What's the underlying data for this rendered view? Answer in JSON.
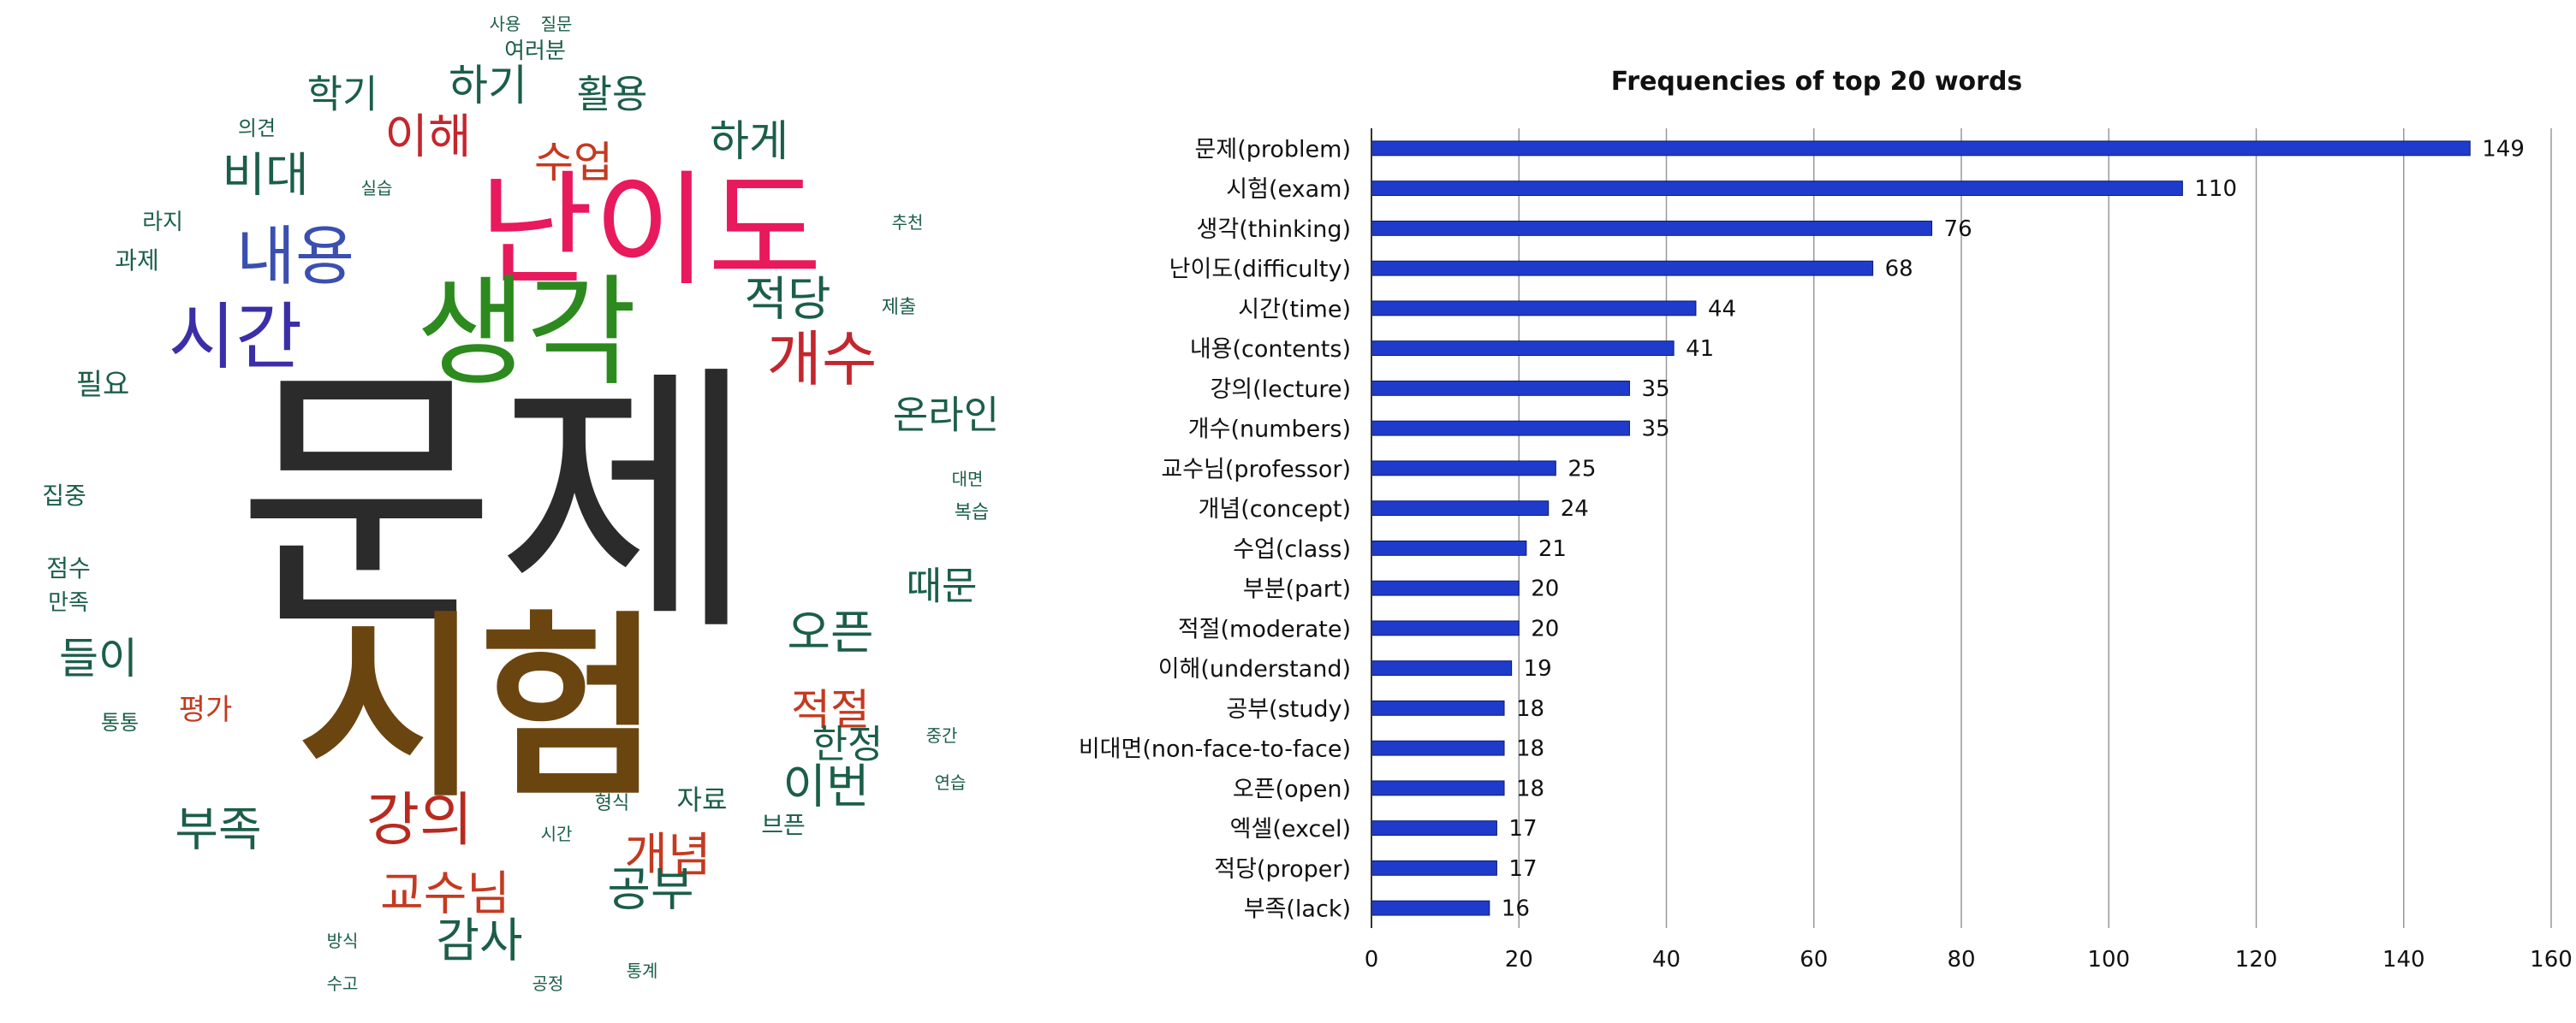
{
  "wordcloud": {
    "words": [
      {
        "text": "문제",
        "color": "#2b2b2b",
        "size": 330,
        "pos": [
          580,
          590
        ]
      },
      {
        "text": "시험",
        "color": "#6b4510",
        "size": 230,
        "pos": [
          560,
          830
        ],
        "weight": "bold"
      },
      {
        "text": "난이도",
        "color": "#e8195c",
        "size": 145,
        "pos": [
          760,
          270
        ]
      },
      {
        "text": "생각",
        "color": "#2d8a1e",
        "size": 140,
        "pos": [
          615,
          390
        ]
      },
      {
        "text": "시간",
        "color": "#3b2ea8",
        "size": 85,
        "pos": [
          275,
          395
        ]
      },
      {
        "text": "내용",
        "color": "#3b4fb0",
        "size": 75,
        "pos": [
          345,
          300
        ]
      },
      {
        "text": "개수",
        "color": "#c4262e",
        "size": 70,
        "pos": [
          960,
          420
        ]
      },
      {
        "text": "강의",
        "color": "#b82a20",
        "size": 68,
        "pos": [
          490,
          960
        ]
      },
      {
        "text": "비대",
        "color": "#1b5e4a",
        "size": 55,
        "pos": [
          310,
          205
        ]
      },
      {
        "text": "이해",
        "color": "#c4262e",
        "size": 55,
        "pos": [
          500,
          160
        ]
      },
      {
        "text": "적당",
        "color": "#1b5e4a",
        "size": 55,
        "pos": [
          920,
          350
        ]
      },
      {
        "text": "수업",
        "color": "#c43a20",
        "size": 50,
        "pos": [
          670,
          190
        ]
      },
      {
        "text": "하게",
        "color": "#1b5e4a",
        "size": 50,
        "pos": [
          875,
          165
        ]
      },
      {
        "text": "하기",
        "color": "#1b5e4a",
        "size": 50,
        "pos": [
          570,
          100
        ]
      },
      {
        "text": "학기",
        "color": "#1b5e4a",
        "size": 45,
        "pos": [
          400,
          110
        ]
      },
      {
        "text": "활용",
        "color": "#1b5e4a",
        "size": 45,
        "pos": [
          715,
          110
        ]
      },
      {
        "text": "온라인",
        "color": "#1b5e4a",
        "size": 45,
        "pos": [
          1105,
          485
        ]
      },
      {
        "text": "때문",
        "color": "#1b5e4a",
        "size": 45,
        "pos": [
          1100,
          685
        ]
      },
      {
        "text": "오픈",
        "color": "#1b5e4a",
        "size": 55,
        "pos": [
          970,
          740
        ]
      },
      {
        "text": "적절",
        "color": "#c43a20",
        "size": 50,
        "pos": [
          970,
          830
        ]
      },
      {
        "text": "한정",
        "color": "#1b5e4a",
        "size": 45,
        "pos": [
          990,
          870
        ]
      },
      {
        "text": "이번",
        "color": "#1b5e4a",
        "size": 55,
        "pos": [
          965,
          920
        ]
      },
      {
        "text": "들이",
        "color": "#1b5e4a",
        "size": 50,
        "pos": [
          115,
          770
        ]
      },
      {
        "text": "부족",
        "color": "#1b5e4a",
        "size": 55,
        "pos": [
          255,
          970
        ]
      },
      {
        "text": "개념",
        "color": "#c43a20",
        "size": 55,
        "pos": [
          780,
          1000
        ]
      },
      {
        "text": "공부",
        "color": "#1b5e4a",
        "size": 55,
        "pos": [
          760,
          1040
        ]
      },
      {
        "text": "교수님",
        "color": "#c43a20",
        "size": 55,
        "pos": [
          520,
          1045
        ]
      },
      {
        "text": "감사",
        "color": "#1b5e4a",
        "size": 55,
        "pos": [
          560,
          1100
        ]
      },
      {
        "text": "자료",
        "color": "#1b5e4a",
        "size": 32,
        "pos": [
          820,
          935
        ]
      },
      {
        "text": "브픈",
        "color": "#1b5e4a",
        "size": 28,
        "pos": [
          915,
          965
        ]
      },
      {
        "text": "평가",
        "color": "#c43a20",
        "size": 34,
        "pos": [
          240,
          830
        ]
      },
      {
        "text": "과제",
        "color": "#1b5e4a",
        "size": 28,
        "pos": [
          160,
          305
        ]
      },
      {
        "text": "라지",
        "color": "#1b5e4a",
        "size": 26,
        "pos": [
          190,
          260
        ]
      },
      {
        "text": "의견",
        "color": "#1b5e4a",
        "size": 24,
        "pos": [
          300,
          150
        ]
      },
      {
        "text": "여러분",
        "color": "#1b5e4a",
        "size": 26,
        "pos": [
          625,
          60
        ]
      },
      {
        "text": "필요",
        "color": "#1b5e4a",
        "size": 34,
        "pos": [
          120,
          450
        ]
      },
      {
        "text": "집중",
        "color": "#1b5e4a",
        "size": 28,
        "pos": [
          75,
          580
        ]
      },
      {
        "text": "점수",
        "color": "#1b5e4a",
        "size": 28,
        "pos": [
          80,
          665
        ]
      },
      {
        "text": "만족",
        "color": "#1b5e4a",
        "size": 26,
        "pos": [
          80,
          705
        ]
      },
      {
        "text": "통통",
        "color": "#1b5e4a",
        "size": 24,
        "pos": [
          140,
          845
        ]
      },
      {
        "text": "제출",
        "color": "#1b5e4a",
        "size": 22,
        "pos": [
          1050,
          360
        ]
      },
      {
        "text": "복습",
        "color": "#1b5e4a",
        "size": 22,
        "pos": [
          1135,
          600
        ]
      },
      {
        "text": "사용",
        "color": "#1b5e4a",
        "size": 20,
        "pos": [
          590,
          28
        ]
      },
      {
        "text": "질문",
        "color": "#1b5e4a",
        "size": 20,
        "pos": [
          650,
          28
        ]
      },
      {
        "text": "실습",
        "color": "#1b5e4a",
        "size": 20,
        "pos": [
          440,
          220
        ]
      },
      {
        "text": "형식",
        "color": "#1b5e4a",
        "size": 22,
        "pos": [
          715,
          940
        ]
      },
      {
        "text": "시간",
        "color": "#1b5e4a",
        "size": 20,
        "pos": [
          650,
          975
        ]
      },
      {
        "text": "방식",
        "color": "#1b5e4a",
        "size": 20,
        "pos": [
          400,
          1100
        ]
      },
      {
        "text": "수고",
        "color": "#1b5e4a",
        "size": 20,
        "pos": [
          400,
          1150
        ]
      },
      {
        "text": "공정",
        "color": "#1b5e4a",
        "size": 20,
        "pos": [
          640,
          1150
        ]
      },
      {
        "text": "통계",
        "color": "#1b5e4a",
        "size": 20,
        "pos": [
          750,
          1135
        ]
      },
      {
        "text": "추천",
        "color": "#1b5e4a",
        "size": 20,
        "pos": [
          1060,
          260
        ]
      },
      {
        "text": "대면",
        "color": "#1b5e4a",
        "size": 20,
        "pos": [
          1130,
          560
        ]
      },
      {
        "text": "연습",
        "color": "#1b5e4a",
        "size": 20,
        "pos": [
          1110,
          915
        ]
      },
      {
        "text": "중간",
        "color": "#1b5e4a",
        "size": 20,
        "pos": [
          1100,
          860
        ]
      }
    ]
  },
  "chart_data": {
    "type": "bar",
    "orientation": "horizontal",
    "title": "Frequencies of top 20 words",
    "categories": [
      "문제(problem)",
      "시험(exam)",
      "생각(thinking)",
      "난이도(difficulty)",
      "시간(time)",
      "내용(contents)",
      "강의(lecture)",
      "개수(numbers)",
      "교수님(professor)",
      "개념(concept)",
      "수업(class)",
      "부분(part)",
      "적절(moderate)",
      "이해(understand)",
      "공부(study)",
      "비대면(non-face-to-face)",
      "오픈(open)",
      "엑셀(excel)",
      "적당(proper)",
      "부족(lack)"
    ],
    "values": [
      149,
      110,
      76,
      68,
      44,
      41,
      35,
      35,
      25,
      24,
      21,
      20,
      20,
      19,
      18,
      18,
      18,
      17,
      17,
      16
    ],
    "xlim": [
      0,
      160
    ],
    "xticks": [
      0,
      20,
      40,
      60,
      80,
      100,
      120,
      140,
      160
    ],
    "grid": true,
    "bar_color": "#1f3bcc",
    "data_labels": true
  }
}
